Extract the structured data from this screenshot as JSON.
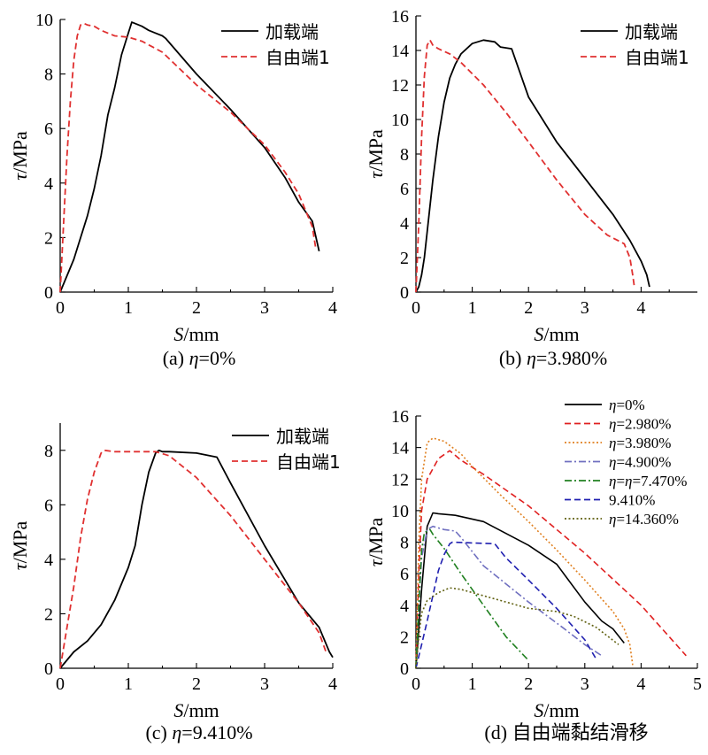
{
  "chart_data": [
    {
      "id": "a",
      "type": "line",
      "caption": "(a) η=0%",
      "xlabel": "S/mm",
      "ylabel": "τ/MPa",
      "xlim": [
        0,
        4
      ],
      "ylim": [
        0,
        10
      ],
      "xticks": [
        0,
        1,
        2,
        3,
        4
      ],
      "yticks": [
        0,
        2,
        4,
        6,
        8,
        10
      ],
      "legend_position": "top-right",
      "series": [
        {
          "name": "加载端",
          "color": "#000000",
          "dash": "solid",
          "x": [
            0,
            0.1,
            0.2,
            0.3,
            0.4,
            0.5,
            0.6,
            0.7,
            0.8,
            0.9,
            1.0,
            1.05,
            1.1,
            1.2,
            1.3,
            1.4,
            1.5,
            1.55,
            2.0,
            2.5,
            3.0,
            3.3,
            3.5,
            3.7,
            3.8
          ],
          "y": [
            0,
            0.6,
            1.2,
            2.0,
            2.8,
            3.8,
            5.0,
            6.5,
            7.5,
            8.7,
            9.5,
            9.9,
            9.85,
            9.75,
            9.6,
            9.5,
            9.4,
            9.3,
            8.0,
            6.7,
            5.3,
            4.2,
            3.3,
            2.6,
            1.5
          ]
        },
        {
          "name": "自由端1",
          "color": "#e03030",
          "dash": "dash",
          "x": [
            0,
            0.03,
            0.06,
            0.1,
            0.15,
            0.2,
            0.25,
            0.3,
            0.35,
            0.4,
            0.5,
            0.6,
            0.7,
            0.8,
            1.0,
            1.2,
            1.5,
            2.0,
            2.5,
            3.0,
            3.3,
            3.5,
            3.6,
            3.7,
            3.75
          ],
          "y": [
            0,
            1.5,
            3.0,
            5.0,
            7.0,
            8.5,
            9.4,
            9.8,
            9.85,
            9.8,
            9.75,
            9.6,
            9.5,
            9.4,
            9.35,
            9.2,
            8.8,
            7.6,
            6.6,
            5.4,
            4.4,
            3.6,
            3.0,
            2.4,
            1.6
          ]
        }
      ]
    },
    {
      "id": "b",
      "type": "line",
      "caption": "(b) η=3.980%",
      "xlabel": "S/mm",
      "ylabel": "τ/MPa",
      "xlim": [
        0,
        5
      ],
      "ylim": [
        0,
        16
      ],
      "xticks": [
        0,
        1,
        2,
        3,
        4
      ],
      "yticks": [
        0,
        2,
        4,
        6,
        8,
        10,
        12,
        14,
        16
      ],
      "legend_position": "top-right",
      "series": [
        {
          "name": "加载端",
          "color": "#000000",
          "dash": "solid",
          "x": [
            0,
            0.05,
            0.1,
            0.15,
            0.2,
            0.25,
            0.3,
            0.4,
            0.5,
            0.6,
            0.7,
            0.8,
            1.0,
            1.2,
            1.4,
            1.5,
            1.7,
            2.0,
            2.5,
            3.0,
            3.5,
            3.8,
            4.0,
            4.1,
            4.15
          ],
          "y": [
            0,
            0.3,
            1.0,
            2.0,
            3.5,
            5.0,
            6.5,
            9.0,
            11.0,
            12.4,
            13.2,
            13.8,
            14.4,
            14.6,
            14.5,
            14.2,
            14.1,
            11.3,
            8.7,
            6.6,
            4.5,
            3.0,
            1.8,
            1.0,
            0.3
          ]
        },
        {
          "name": "自由端1",
          "color": "#e03030",
          "dash": "dash",
          "x": [
            0,
            0.05,
            0.1,
            0.15,
            0.2,
            0.25,
            0.3,
            0.4,
            0.6,
            0.8,
            1.2,
            1.6,
            2.0,
            2.5,
            3.0,
            3.4,
            3.7,
            3.8,
            3.85,
            3.88
          ],
          "y": [
            0,
            4.0,
            9.0,
            12.5,
            14.3,
            14.6,
            14.3,
            14.1,
            13.8,
            13.3,
            12.0,
            10.4,
            8.7,
            6.5,
            4.5,
            3.3,
            2.8,
            2.0,
            1.0,
            0.3
          ]
        }
      ]
    },
    {
      "id": "c",
      "type": "line",
      "caption": "(c) η=9.410%",
      "xlabel": "S/mm",
      "ylabel": "τ/MPa",
      "xlim": [
        0,
        4
      ],
      "ylim": [
        0,
        9
      ],
      "xticks": [
        0,
        1,
        2,
        3,
        4
      ],
      "yticks": [
        0,
        2,
        4,
        6,
        8
      ],
      "legend_position": "top-right",
      "series": [
        {
          "name": "加载端",
          "color": "#000000",
          "dash": "solid",
          "x": [
            0,
            0.2,
            0.4,
            0.6,
            0.8,
            1.0,
            1.1,
            1.2,
            1.3,
            1.4,
            1.45,
            1.5,
            1.6,
            2.0,
            2.3,
            2.5,
            3.0,
            3.5,
            3.8,
            3.95,
            4.0
          ],
          "y": [
            0,
            0.6,
            1.0,
            1.6,
            2.5,
            3.7,
            4.5,
            6.0,
            7.2,
            7.9,
            8.0,
            7.95,
            7.95,
            7.9,
            7.75,
            6.8,
            4.5,
            2.4,
            1.5,
            0.6,
            0.4
          ]
        },
        {
          "name": "自由端1",
          "color": "#e03030",
          "dash": "dash",
          "x": [
            0,
            0.1,
            0.2,
            0.3,
            0.4,
            0.5,
            0.6,
            0.65,
            0.8,
            1.0,
            1.4,
            1.6,
            2.0,
            2.5,
            3.0,
            3.5,
            3.8,
            3.9
          ],
          "y": [
            0,
            1.5,
            3.0,
            4.8,
            6.2,
            7.2,
            7.9,
            8.0,
            7.95,
            7.95,
            7.95,
            7.8,
            7.0,
            5.6,
            4.0,
            2.4,
            1.3,
            0.6
          ]
        }
      ]
    },
    {
      "id": "d",
      "type": "line",
      "caption": "(d) 自由端黏结滑移",
      "xlabel": "S/mm",
      "ylabel": "τ/MPa",
      "xlim": [
        0,
        5
      ],
      "ylim": [
        0,
        16
      ],
      "xticks": [
        0,
        1,
        2,
        3,
        4,
        5
      ],
      "yticks": [
        0,
        2,
        4,
        6,
        8,
        10,
        12,
        14,
        16
      ],
      "legend_position": "top-right",
      "series": [
        {
          "name": "η=0%",
          "color": "#000000",
          "dash": "solid",
          "x": [
            0,
            0.1,
            0.2,
            0.3,
            0.4,
            0.7,
            1.2,
            2.0,
            2.5,
            3.0,
            3.3,
            3.5,
            3.7
          ],
          "y": [
            0,
            5.0,
            9.0,
            9.85,
            9.8,
            9.7,
            9.3,
            7.8,
            6.6,
            4.2,
            3.0,
            2.5,
            1.6
          ]
        },
        {
          "name": "η=2.980%",
          "color": "#e02020",
          "dash": "dash",
          "x": [
            0,
            0.05,
            0.1,
            0.2,
            0.4,
            0.6,
            0.7,
            0.8,
            1.2,
            2.0,
            3.0,
            4.0,
            4.8
          ],
          "y": [
            0,
            6.0,
            10.0,
            12.0,
            13.3,
            13.8,
            13.5,
            13.2,
            12.3,
            10.3,
            7.3,
            4.0,
            0.8
          ]
        },
        {
          "name": "η=3.980%",
          "color": "#e08020",
          "dash": "dot",
          "x": [
            0,
            0.05,
            0.1,
            0.2,
            0.3,
            0.5,
            0.8,
            1.0,
            1.5,
            2.0,
            2.5,
            3.0,
            3.5,
            3.7,
            3.8,
            3.85
          ],
          "y": [
            0,
            8.0,
            12.0,
            14.3,
            14.6,
            14.4,
            13.6,
            12.8,
            11.0,
            9.3,
            7.5,
            5.6,
            3.6,
            2.5,
            1.5,
            0.2
          ]
        },
        {
          "name": "η=4.900%",
          "color": "#7070c0",
          "dash": "dashdot",
          "x": [
            0,
            0.05,
            0.1,
            0.2,
            0.3,
            0.5,
            0.7,
            0.8,
            1.2,
            2.0,
            2.6,
            3.0,
            3.3
          ],
          "y": [
            0,
            4.0,
            7.0,
            8.8,
            9.0,
            8.8,
            8.7,
            8.3,
            6.5,
            4.2,
            2.6,
            1.5,
            0.8
          ]
        },
        {
          "name": "η=η=7.470%",
          "color": "#208020",
          "dash": "dashdot",
          "x": [
            0,
            0.05,
            0.1,
            0.15,
            0.25,
            0.3,
            0.5,
            0.8,
            1.2,
            1.6,
            2.0
          ],
          "y": [
            0,
            4.0,
            7.5,
            8.6,
            8.8,
            8.5,
            7.6,
            6.0,
            4.0,
            2.0,
            0.5
          ]
        },
        {
          "name": "9.410%",
          "color": "#2020b0",
          "dash": "dash",
          "x": [
            0,
            0.1,
            0.2,
            0.4,
            0.5,
            0.6,
            0.65,
            1.0,
            1.4,
            1.6,
            2.0,
            2.5,
            3.0,
            3.2
          ],
          "y": [
            0,
            1.5,
            3.0,
            6.2,
            7.2,
            7.9,
            8.0,
            7.95,
            7.9,
            7.0,
            5.6,
            3.8,
            1.8,
            0.6
          ]
        },
        {
          "name": "η=14.360%",
          "color": "#606010",
          "dash": "dot",
          "x": [
            0,
            0.05,
            0.1,
            0.2,
            0.4,
            0.6,
            0.8,
            1.0,
            1.5,
            2.0,
            2.5,
            2.8,
            3.2,
            3.6
          ],
          "y": [
            0,
            2.0,
            3.5,
            4.3,
            4.8,
            5.1,
            5.0,
            4.8,
            4.3,
            3.8,
            3.6,
            3.3,
            2.6,
            1.5
          ]
        }
      ]
    }
  ]
}
